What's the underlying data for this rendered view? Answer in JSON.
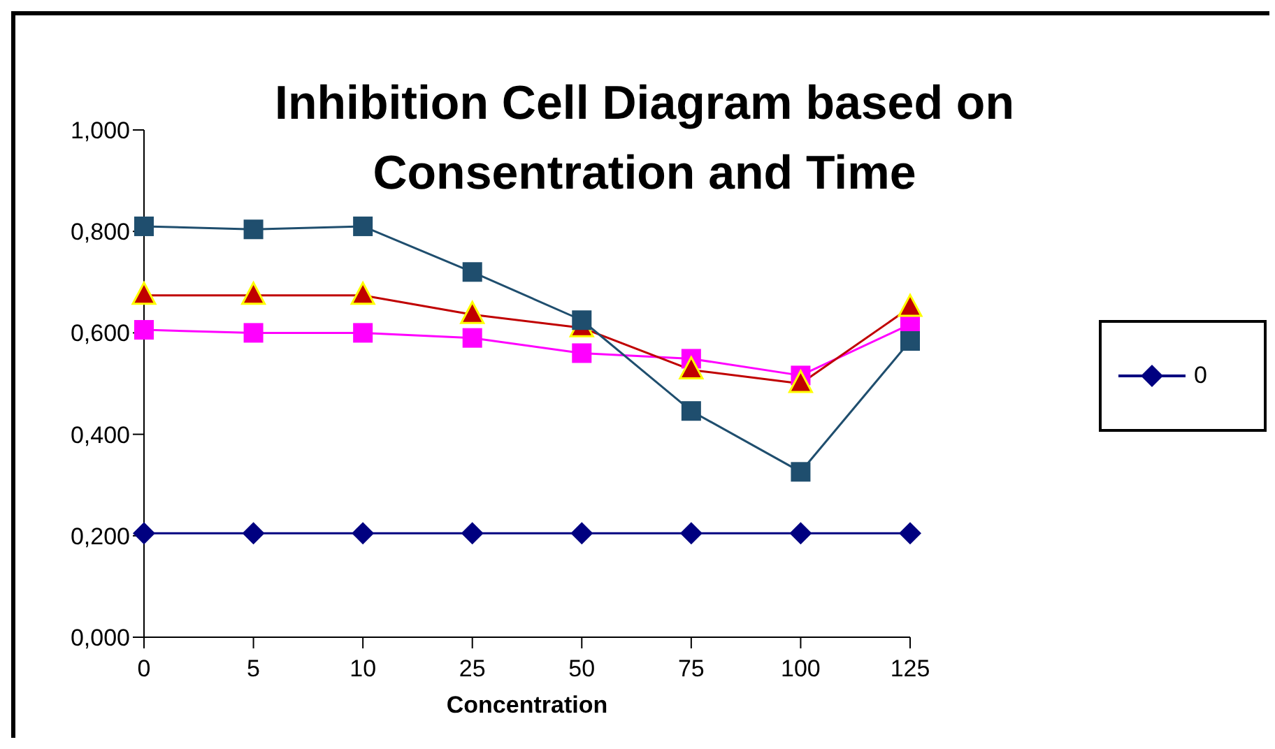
{
  "chart_data": {
    "type": "line",
    "title": "Inhibition Cell Diagram based on Consentration and Time",
    "xlabel": "Concentration",
    "categories": [
      "0",
      "5",
      "10",
      "25",
      "50",
      "75",
      "100",
      "125"
    ],
    "series": [
      {
        "name": "0",
        "color": "#000080",
        "marker": "diamond",
        "values": [
          0.205,
          0.205,
          0.205,
          0.205,
          0.205,
          0.205,
          0.205,
          0.205
        ]
      },
      {
        "color": "#ff00ff",
        "marker": "square",
        "values": [
          0.606,
          0.6,
          0.6,
          0.59,
          0.56,
          0.549,
          0.516,
          0.617
        ]
      },
      {
        "color": "#c00000",
        "marker": "triangle",
        "values": [
          0.674,
          0.674,
          0.674,
          0.636,
          0.61,
          0.527,
          0.5,
          0.65
        ]
      },
      {
        "color": "#1f4e6e",
        "marker": "square",
        "values": [
          0.81,
          0.804,
          0.81,
          0.72,
          0.625,
          0.446,
          0.326,
          0.584
        ]
      }
    ],
    "ylim": [
      0,
      1
    ],
    "yticks": [
      {
        "value": 0,
        "label": "0,000"
      },
      {
        "value": 0.2,
        "label": "0,200"
      },
      {
        "value": 0.4,
        "label": "0,400"
      },
      {
        "value": 0.6,
        "label": "0,600"
      },
      {
        "value": 0.8,
        "label": "0,800"
      },
      {
        "value": 1,
        "label": "1,000"
      }
    ],
    "grid": false,
    "legend": "right",
    "line_style": "solid"
  }
}
